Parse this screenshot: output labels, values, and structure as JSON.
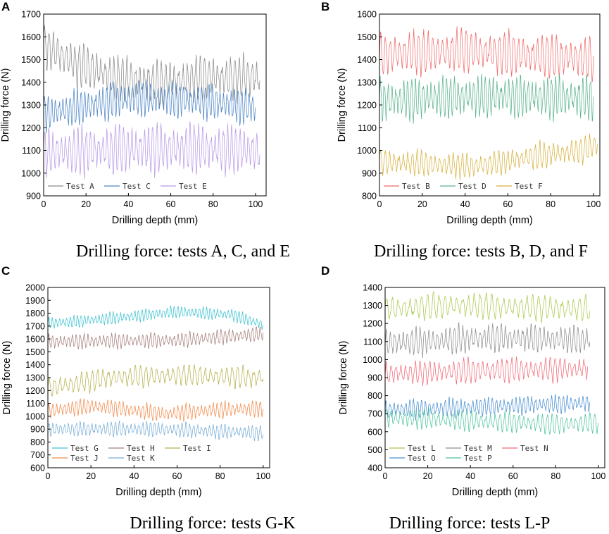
{
  "figure": {
    "panels": [
      {
        "letter": "A",
        "caption": "Drilling force: tests A, C, and E"
      },
      {
        "letter": "B",
        "caption": "Drilling force: tests B, D, and F"
      },
      {
        "letter": "C",
        "caption": "Drilling force: tests G-K"
      },
      {
        "letter": "D",
        "caption": "Drilling force: tests L-P"
      }
    ]
  },
  "chart_data": [
    {
      "type": "line",
      "panel": "A",
      "xlabel": "Drilling depth (mm)",
      "ylabel": "Drilling force (N)",
      "xlim": [
        0,
        105
      ],
      "ylim": [
        900,
        1700
      ],
      "xticks": [
        0,
        20,
        40,
        60,
        80,
        100
      ],
      "yticks": [
        900,
        1000,
        1100,
        1200,
        1300,
        1400,
        1500,
        1600,
        1700
      ],
      "legend_position": "bottom-left",
      "legend_rows": [
        [
          0,
          1,
          2
        ]
      ],
      "series": [
        {
          "name": "Test A",
          "color": "#8c8c8c",
          "x_range": [
            0,
            102
          ],
          "mean_profile": [
            [
              0,
              1560
            ],
            [
              15,
              1480
            ],
            [
              35,
              1420
            ],
            [
              55,
              1395
            ],
            [
              75,
              1420
            ],
            [
              102,
              1420
            ]
          ],
          "amplitude": 95,
          "cycles": 50
        },
        {
          "name": "Test C",
          "color": "#4f86c6",
          "x_range": [
            0,
            100
          ],
          "mean_profile": [
            [
              0,
              1260
            ],
            [
              40,
              1330
            ],
            [
              70,
              1320
            ],
            [
              100,
              1290
            ]
          ],
          "amplitude": 75,
          "cycles": 58
        },
        {
          "name": "Test E",
          "color": "#b99be6",
          "x_range": [
            0,
            102
          ],
          "mean_profile": [
            [
              0,
              1090
            ],
            [
              50,
              1110
            ],
            [
              102,
              1100
            ]
          ],
          "amplitude": 105,
          "cycles": 52
        }
      ]
    },
    {
      "type": "line",
      "panel": "B",
      "xlabel": "Drilling depth (mm)",
      "ylabel": "Drilling force (N)",
      "xlim": [
        0,
        103
      ],
      "ylim": [
        800,
        1600
      ],
      "xticks": [
        0,
        20,
        40,
        60,
        80,
        100
      ],
      "yticks": [
        800,
        900,
        1000,
        1100,
        1200,
        1300,
        1400,
        1500,
        1600
      ],
      "legend_position": "bottom-left",
      "legend_rows": [
        [
          0,
          1,
          2
        ]
      ],
      "series": [
        {
          "name": "Test B",
          "color": "#ef6b6b",
          "x_range": [
            0,
            100
          ],
          "mean_profile": [
            [
              0,
              1420
            ],
            [
              40,
              1440
            ],
            [
              70,
              1420
            ],
            [
              100,
              1400
            ]
          ],
          "amplitude": 95,
          "cycles": 45
        },
        {
          "name": "Test D",
          "color": "#5bb38c",
          "x_range": [
            0,
            100
          ],
          "mean_profile": [
            [
              0,
              1220
            ],
            [
              50,
              1240
            ],
            [
              100,
              1230
            ]
          ],
          "amplitude": 90,
          "cycles": 55
        },
        {
          "name": "Test F",
          "color": "#d6b13f",
          "x_range": [
            0,
            102
          ],
          "mean_profile": [
            [
              0,
              950
            ],
            [
              45,
              930
            ],
            [
              70,
              970
            ],
            [
              95,
              1000
            ],
            [
              102,
              1030
            ]
          ],
          "amplitude": 55,
          "cycles": 48
        }
      ]
    },
    {
      "type": "line",
      "panel": "C",
      "xlabel": "Drilling depth (mm)",
      "ylabel": "Drilling force (N)",
      "xlim": [
        0,
        103
      ],
      "ylim": [
        600,
        2000
      ],
      "xticks": [
        0,
        20,
        40,
        60,
        80,
        100
      ],
      "yticks": [
        600,
        700,
        800,
        900,
        1000,
        1100,
        1200,
        1300,
        1400,
        1500,
        1600,
        1700,
        1800,
        1900,
        2000
      ],
      "legend_position": "bottom-left",
      "legend_rows": [
        [
          0,
          1,
          2
        ],
        [
          3,
          4
        ]
      ],
      "series": [
        {
          "name": "Test G",
          "color": "#3ec3d0",
          "x_range": [
            0,
            100
          ],
          "mean_profile": [
            [
              0,
              1720
            ],
            [
              30,
              1760
            ],
            [
              60,
              1810
            ],
            [
              85,
              1790
            ],
            [
              100,
              1710
            ]
          ],
          "amplitude": 45,
          "cycles": 60
        },
        {
          "name": "Test H",
          "color": "#a67f7c",
          "x_range": [
            0,
            100
          ],
          "mean_profile": [
            [
              0,
              1580
            ],
            [
              60,
              1590
            ],
            [
              100,
              1640
            ]
          ],
          "amplitude": 55,
          "cycles": 55
        },
        {
          "name": "Test I",
          "color": "#b4b04a",
          "x_range": [
            0,
            100
          ],
          "mean_profile": [
            [
              0,
              1220
            ],
            [
              30,
              1300
            ],
            [
              60,
              1320
            ],
            [
              100,
              1300
            ]
          ],
          "amplitude": 80,
          "cycles": 40
        },
        {
          "name": "Test J",
          "color": "#f08a4b",
          "x_range": [
            0,
            100
          ],
          "mean_profile": [
            [
              0,
              1040
            ],
            [
              20,
              1080
            ],
            [
              55,
              1020
            ],
            [
              80,
              1050
            ],
            [
              100,
              1060
            ]
          ],
          "amplitude": 60,
          "cycles": 55
        },
        {
          "name": "Test K",
          "color": "#7aaed6",
          "x_range": [
            0,
            100
          ],
          "mean_profile": [
            [
              0,
              900
            ],
            [
              50,
              900
            ],
            [
              100,
              870
            ]
          ],
          "amplitude": 55,
          "cycles": 55
        }
      ]
    },
    {
      "type": "line",
      "panel": "D",
      "xlabel": "Drilling depth (mm)",
      "ylabel": "Drilling force (N)",
      "xlim": [
        0,
        103
      ],
      "ylim": [
        400,
        1400
      ],
      "xticks": [
        0,
        20,
        40,
        60,
        80,
        100
      ],
      "yticks": [
        400,
        500,
        600,
        700,
        800,
        900,
        1000,
        1100,
        1200,
        1300,
        1400
      ],
      "legend_position": "bottom-left",
      "legend_rows": [
        [
          0,
          1,
          2
        ],
        [
          3,
          4
        ]
      ],
      "series": [
        {
          "name": "Test L",
          "color": "#a8c94a",
          "x_range": [
            0,
            96
          ],
          "mean_profile": [
            [
              0,
              1280
            ],
            [
              30,
              1300
            ],
            [
              96,
              1280
            ]
          ],
          "amplitude": 70,
          "cycles": 35
        },
        {
          "name": "Test M",
          "color": "#8f8f8f",
          "x_range": [
            0,
            96
          ],
          "mean_profile": [
            [
              0,
              1090
            ],
            [
              50,
              1120
            ],
            [
              96,
              1110
            ]
          ],
          "amplitude": 75,
          "cycles": 48
        },
        {
          "name": "Test N",
          "color": "#f06a78",
          "x_range": [
            0,
            95
          ],
          "mean_profile": [
            [
              0,
              920
            ],
            [
              50,
              940
            ],
            [
              95,
              950
            ]
          ],
          "amplitude": 65,
          "cycles": 42
        },
        {
          "name": "Test O",
          "color": "#4a8fd1",
          "x_range": [
            0,
            96
          ],
          "mean_profile": [
            [
              0,
              720
            ],
            [
              50,
              740
            ],
            [
              96,
              760
            ]
          ],
          "amplitude": 50,
          "cycles": 52
        },
        {
          "name": "Test P",
          "color": "#4ec29e",
          "x_range": [
            0,
            100
          ],
          "mean_profile": [
            [
              0,
              680
            ],
            [
              40,
              660
            ],
            [
              80,
              640
            ],
            [
              100,
              650
            ]
          ],
          "amplitude": 55,
          "cycles": 45
        }
      ]
    }
  ]
}
